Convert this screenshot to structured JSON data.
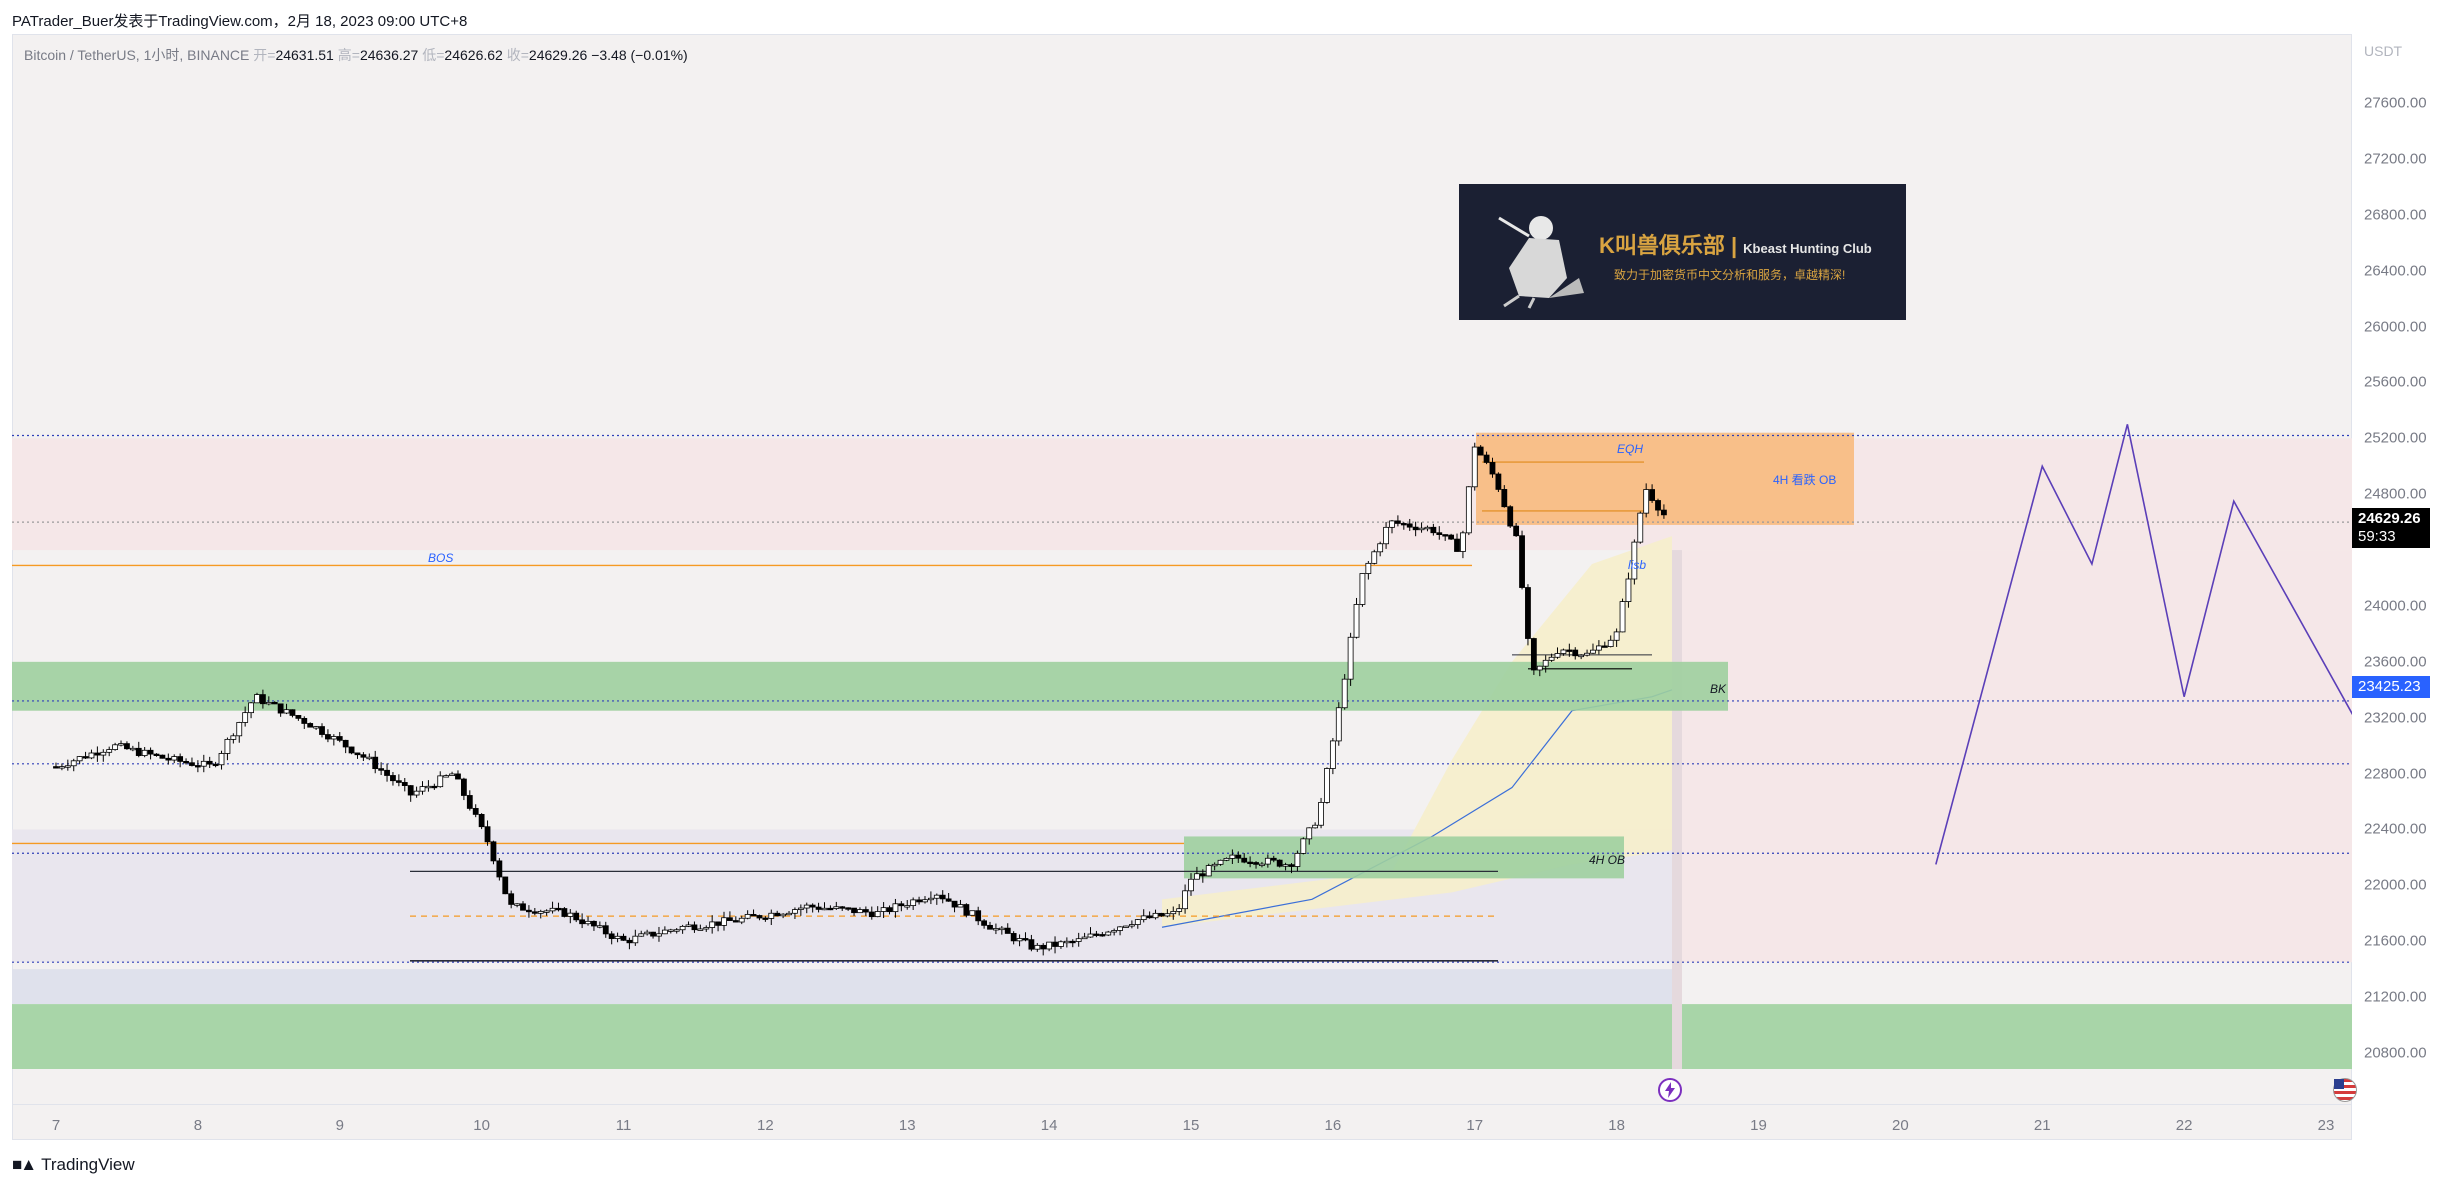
{
  "header": {
    "publisher_line": "PATrader_Buer发表于TradingView.com，2月 18, 2023 09:00 UTC+8"
  },
  "symbol": {
    "name": "Bitcoin / TetherUS, 1小时, BINANCE",
    "open_label": "开=",
    "open": "24631.51",
    "high_label": "高=",
    "high": "24636.27",
    "low_label": "低=",
    "low": "24626.62",
    "close_label": "收=",
    "close": "24629.26",
    "change": "−3.48 (−0.01%)"
  },
  "price_axis": {
    "currency": "USDT",
    "ticks": [
      "27600.00",
      "27200.00",
      "26800.00",
      "26400.00",
      "26000.00",
      "25600.00",
      "25200.00",
      "24800.00",
      "24000.00",
      "23600.00",
      "23200.00",
      "22800.00",
      "22400.00",
      "22000.00",
      "21600.00",
      "21200.00",
      "20800.00"
    ]
  },
  "price_labels": {
    "current": "24629.26",
    "countdown": "59:33",
    "bk_level": "23425.23"
  },
  "time_axis": {
    "ticks": [
      "7",
      "8",
      "9",
      "10",
      "11",
      "12",
      "13",
      "14",
      "15",
      "16",
      "17",
      "18",
      "19",
      "20",
      "21",
      "22",
      "23"
    ]
  },
  "annotations": {
    "bos": "BOS",
    "eqh": "EQH",
    "ob_4h_bear": "4H 看跌 OB",
    "lisb": "lisb",
    "bk": "BK",
    "ob_4h": "4H OB"
  },
  "banner": {
    "title": "K叫兽俱乐部",
    "separator": "|",
    "subtitle": "Kbeast Hunting Club",
    "slogan": "致力于加密货币中文分析和服务，卓越精深!"
  },
  "footer": {
    "brand": "TradingView"
  },
  "colors": {
    "up": "#ffffff",
    "down": "#000000",
    "zone_green": "#7fbf7f",
    "zone_orange": "#f8b26a",
    "projection": "#5b3fb8",
    "dotted_level": "#2f3fb8",
    "bos_line": "#f59a23"
  },
  "icons": {
    "flash": "lightning-icon",
    "flag": "us-flag-icon"
  },
  "chart_data": {
    "type": "candlestick",
    "symbol": "Bitcoin / TetherUS",
    "interval": "1小时",
    "ylim": [
      20500,
      27800
    ],
    "yticks": [
      27600,
      27200,
      26800,
      26400,
      26000,
      25600,
      25200,
      24800,
      24000,
      23600,
      23200,
      22800,
      22400,
      22000,
      21600,
      21200,
      20800
    ],
    "key_levels": [
      {
        "name": "EQH",
        "value": 25220
      },
      {
        "name": "current",
        "value": 24629.26
      },
      {
        "name": "BK",
        "value": 23425.23
      },
      {
        "name": "BOS",
        "value": 24290
      }
    ],
    "path_points": [
      {
        "d": 7.0,
        "p": 22850
      },
      {
        "d": 7.4,
        "p": 23000
      },
      {
        "d": 7.8,
        "p": 22900
      },
      {
        "d": 8.1,
        "p": 22850
      },
      {
        "d": 8.4,
        "p": 23350
      },
      {
        "d": 8.8,
        "p": 23150
      },
      {
        "d": 9.2,
        "p": 22900
      },
      {
        "d": 9.5,
        "p": 22650
      },
      {
        "d": 9.8,
        "p": 22800
      },
      {
        "d": 10.05,
        "p": 22300
      },
      {
        "d": 10.2,
        "p": 21850
      },
      {
        "d": 10.6,
        "p": 21800
      },
      {
        "d": 11.0,
        "p": 21600
      },
      {
        "d": 11.4,
        "p": 21700
      },
      {
        "d": 11.8,
        "p": 21750
      },
      {
        "d": 12.3,
        "p": 21850
      },
      {
        "d": 12.8,
        "p": 21800
      },
      {
        "d": 13.2,
        "p": 21950
      },
      {
        "d": 13.6,
        "p": 21700
      },
      {
        "d": 13.9,
        "p": 21550
      },
      {
        "d": 14.2,
        "p": 21600
      },
      {
        "d": 14.6,
        "p": 21750
      },
      {
        "d": 14.9,
        "p": 21800
      },
      {
        "d": 15.0,
        "p": 22050
      },
      {
        "d": 15.3,
        "p": 22200
      },
      {
        "d": 15.7,
        "p": 22150
      },
      {
        "d": 15.9,
        "p": 22500
      },
      {
        "d": 16.05,
        "p": 23300
      },
      {
        "d": 16.2,
        "p": 24200
      },
      {
        "d": 16.4,
        "p": 24600
      },
      {
        "d": 16.7,
        "p": 24550
      },
      {
        "d": 16.9,
        "p": 24400
      },
      {
        "d": 17.0,
        "p": 25150
      },
      {
        "d": 17.15,
        "p": 24900
      },
      {
        "d": 17.3,
        "p": 24450
      },
      {
        "d": 17.4,
        "p": 23500
      },
      {
        "d": 17.6,
        "p": 23700
      },
      {
        "d": 17.8,
        "p": 23650
      },
      {
        "d": 18.0,
        "p": 23800
      },
      {
        "d": 18.1,
        "p": 24300
      },
      {
        "d": 18.2,
        "p": 24850
      },
      {
        "d": 18.35,
        "p": 24629
      }
    ],
    "projection": [
      {
        "d": 20.25,
        "p": 22150
      },
      {
        "d": 21.0,
        "p": 25000
      },
      {
        "d": 21.35,
        "p": 24300
      },
      {
        "d": 21.6,
        "p": 25300
      },
      {
        "d": 22.0,
        "p": 23350
      },
      {
        "d": 22.35,
        "p": 24750
      },
      {
        "d": 23.2,
        "p": 23200
      }
    ]
  }
}
